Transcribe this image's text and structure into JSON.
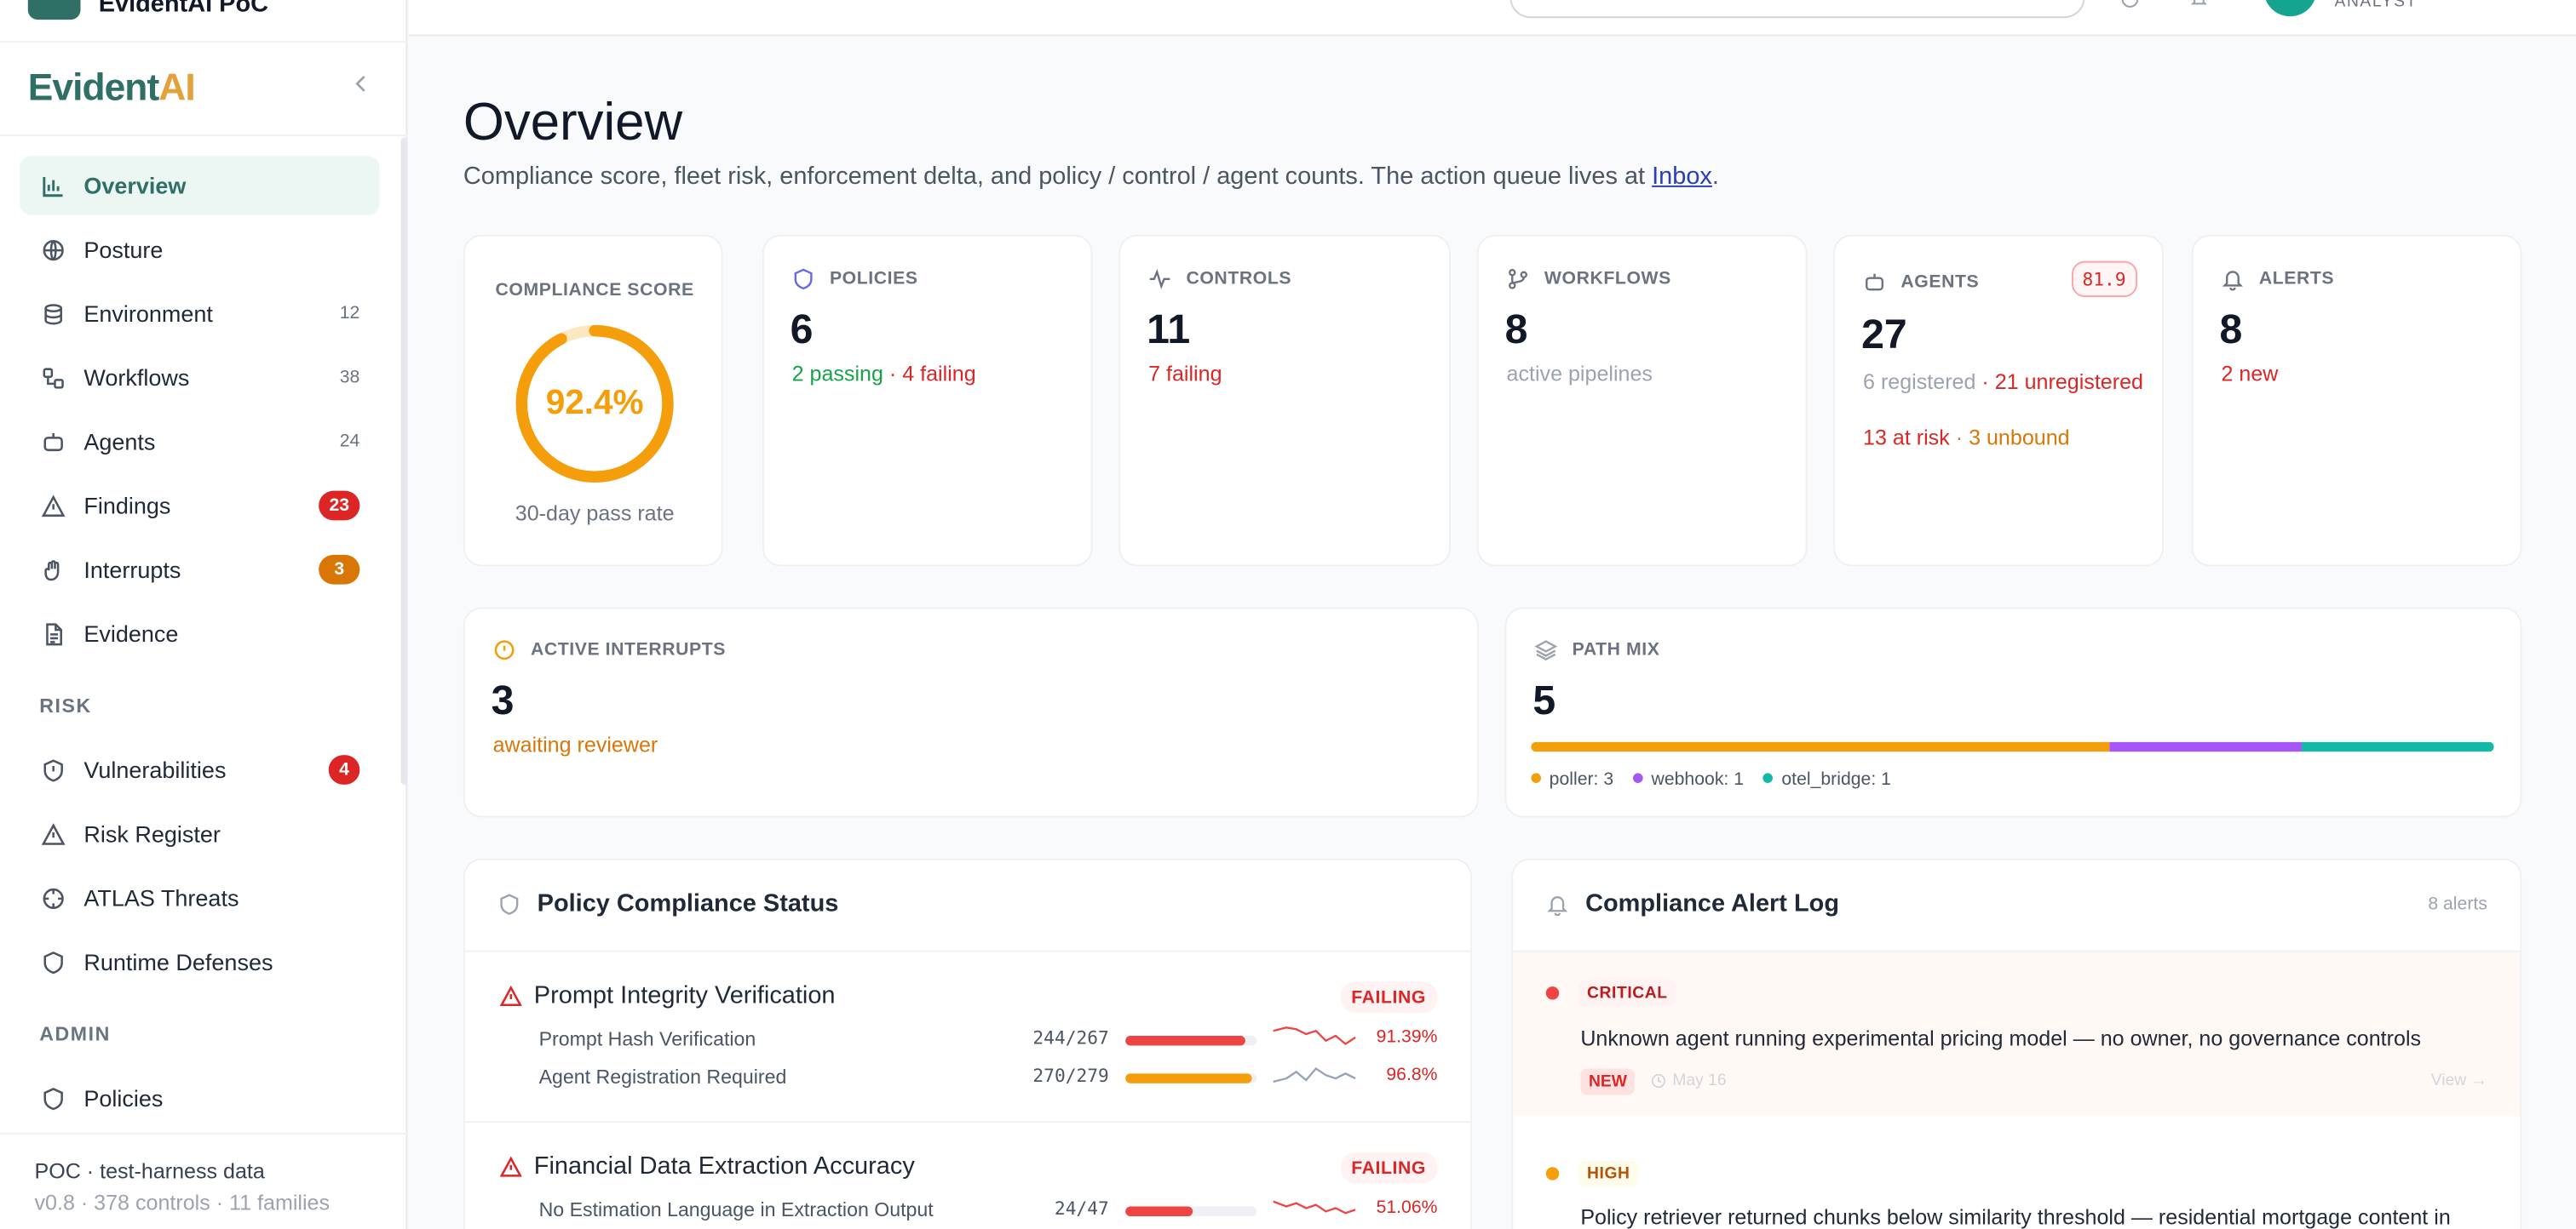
{
  "app": {
    "name": "EvidentAI PoC",
    "brand_part1": "Evident",
    "brand_part2": "AI",
    "collapse_icon": "chevron-left-icon"
  },
  "topbar": {
    "role": "ANALYST"
  },
  "sidebar": {
    "items": [
      {
        "label": "Overview",
        "icon": "bar-chart-icon",
        "active": true
      },
      {
        "label": "Posture",
        "icon": "globe-icon"
      },
      {
        "label": "Environment",
        "icon": "database-icon",
        "count": "12"
      },
      {
        "label": "Workflows",
        "icon": "workflow-icon",
        "count": "38"
      },
      {
        "label": "Agents",
        "icon": "bot-icon",
        "count": "24"
      },
      {
        "label": "Findings",
        "icon": "warning-icon",
        "badge": "23"
      },
      {
        "label": "Interrupts",
        "icon": "hand-icon",
        "badge": "3"
      },
      {
        "label": "Evidence",
        "icon": "document-icon"
      }
    ],
    "risk_section": "RISK",
    "risk_items": [
      {
        "label": "Vulnerabilities",
        "icon": "shield-alert-icon",
        "badge": "4"
      },
      {
        "label": "Risk Register",
        "icon": "warning-icon"
      },
      {
        "label": "ATLAS Threats",
        "icon": "crosshair-icon"
      },
      {
        "label": "Runtime Defenses",
        "icon": "shield-icon"
      }
    ],
    "admin_section": "ADMIN",
    "admin_items": [
      {
        "label": "Policies",
        "icon": "shield-icon"
      }
    ],
    "footer_line1": "POC · test-harness data",
    "footer_line2": "v0.8 · 378 controls · 11 families"
  },
  "page": {
    "title": "Overview",
    "subtitle_prefix": "Compliance score, fleet risk, enforcement delta, and policy / control / agent counts. The action queue lives at ",
    "subtitle_link": "Inbox",
    "subtitle_suffix": "."
  },
  "compliance": {
    "label": "COMPLIANCE SCORE",
    "value": "92.4%",
    "fraction": 0.924,
    "caption": "30-day pass rate",
    "color": "#f59e0b"
  },
  "policies": {
    "label": "POLICIES",
    "value": "6",
    "passing": "2 passing",
    "failing": "· 4 failing"
  },
  "controls": {
    "label": "CONTROLS",
    "value": "11",
    "failing": "7 failing"
  },
  "workflows": {
    "label": "WORKFLOWS",
    "value": "8",
    "sub": "active pipelines"
  },
  "agents": {
    "label": "AGENTS",
    "value": "27",
    "badge": "81.9",
    "registered": "6 registered",
    "unregistered": "· 21 unregistered",
    "at_risk": "13 at risk",
    "unbound": "· 3 unbound"
  },
  "alerts": {
    "label": "ALERTS",
    "value": "8",
    "new": "2 new"
  },
  "interrupts": {
    "label": "ACTIVE INTERRUPTS",
    "value": "3",
    "sub": "awaiting reviewer"
  },
  "path_mix": {
    "label": "PATH MIX",
    "value": "5",
    "segments": [
      {
        "name": "poller",
        "legend": "poller: 3",
        "count": 3,
        "color": "#f59e0b"
      },
      {
        "name": "webhook",
        "legend": "webhook: 1",
        "count": 1,
        "color": "#a855f7"
      },
      {
        "name": "otel_bridge",
        "legend": "otel_bridge: 1",
        "count": 1,
        "color": "#14b8a6"
      }
    ]
  },
  "policy_panel": {
    "title": "Policy Compliance Status",
    "policies": [
      {
        "name": "Prompt Integrity Verification",
        "status": "FAILING",
        "controls": [
          {
            "name": "Prompt Hash Verification",
            "fraction": "244/267",
            "pct": "91.39%",
            "level": 0.9139,
            "color": "#ef4444"
          },
          {
            "name": "Agent Registration Required",
            "fraction": "270/279",
            "pct": "96.8%",
            "level": 0.968,
            "color": "#f59e0b"
          }
        ]
      },
      {
        "name": "Financial Data Extraction Accuracy",
        "status": "FAILING",
        "controls": [
          {
            "name": "No Estimation Language in Extraction Output",
            "fraction": "24/47",
            "pct": "51.06%",
            "level": 0.5106,
            "color": "#ef4444"
          }
        ]
      }
    ]
  },
  "alert_panel": {
    "title": "Compliance Alert Log",
    "count": "8 alerts",
    "alerts": [
      {
        "severity": "CRITICAL",
        "text": "Unknown agent running experimental pricing model — no owner, no governance controls",
        "new": "NEW",
        "date": "May 16",
        "view": "View →"
      },
      {
        "severity": "HIGH",
        "text": "Policy retriever returned chunks below similarity threshold — residential mortgage content in"
      }
    ]
  }
}
